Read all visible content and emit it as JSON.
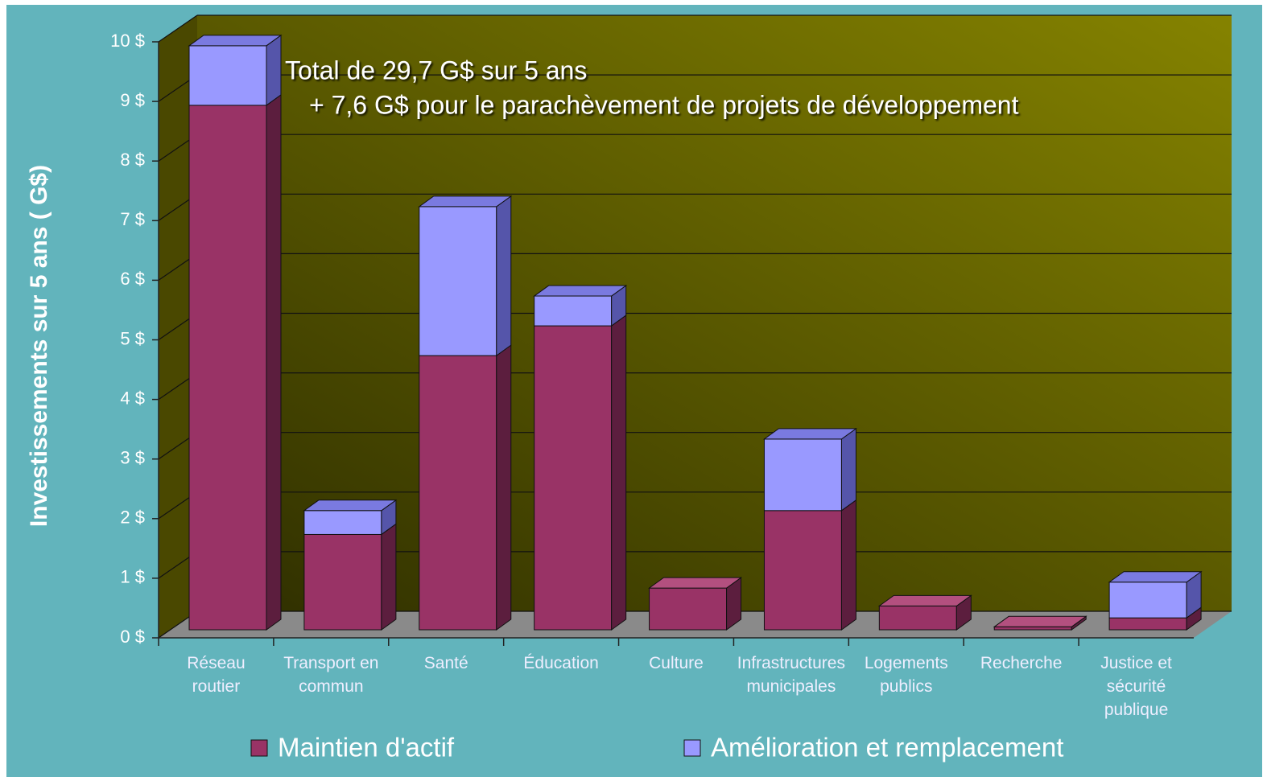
{
  "chart_data": {
    "type": "bar3d_stacked",
    "annotations": [
      "Total de 29,7 G$ sur 5 ans",
      "+ 7,6 G$ pour le parachèvement de projets de développement"
    ],
    "ylabel": "Investissements sur 5 ans ( G$)",
    "categories": [
      "Réseau\nroutier",
      "Transport en\ncommun",
      "Santé",
      "Éducation",
      "Culture",
      "Infrastructures\nmunicipales",
      "Logements\npublics",
      "Recherche",
      "Justice et\nsécurité\npublique"
    ],
    "series": [
      {
        "name": "Maintien d'actif",
        "color": "#993366",
        "values": [
          8.8,
          1.6,
          4.6,
          5.1,
          0.7,
          2.0,
          0.4,
          0.05,
          0.2
        ]
      },
      {
        "name": "Amélioration et remplacement",
        "color": "#9999ff",
        "values": [
          1.0,
          0.4,
          2.5,
          0.5,
          0,
          1.2,
          0,
          0,
          0.6
        ]
      }
    ],
    "ylim": [
      0,
      10
    ],
    "yticks": [
      {
        "value": 0,
        "label": "0 $"
      },
      {
        "value": 1,
        "label": "1 $"
      },
      {
        "value": 2,
        "label": "2 $"
      },
      {
        "value": 3,
        "label": "3 $"
      },
      {
        "value": 4,
        "label": "4 $"
      },
      {
        "value": 5,
        "label": "5 $"
      },
      {
        "value": 6,
        "label": "6 $"
      },
      {
        "value": 7,
        "label": "7 $"
      },
      {
        "value": 8,
        "label": "8 $"
      },
      {
        "value": 9,
        "label": "9 $"
      },
      {
        "value": 10,
        "label": "10 $"
      }
    ],
    "grid": true
  }
}
